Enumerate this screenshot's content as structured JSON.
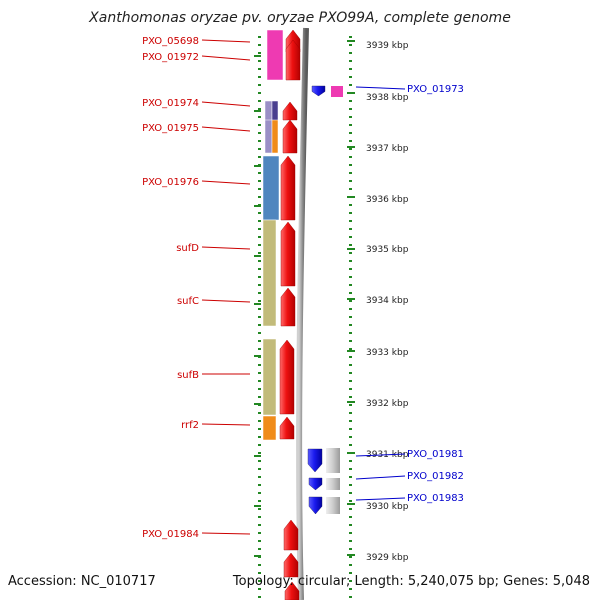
{
  "title": "Xanthomonas oryzae pv. oryzae PXO99A, complete genome",
  "footer": {
    "accession": "Accession: NC_010717",
    "summary": "Topology: circular; Length: 5,240,075 bp; Genes: 5,048"
  },
  "scale": {
    "unit": "kbp",
    "ticks": [
      3939,
      3938,
      3937,
      3936,
      3935,
      3934,
      3933,
      3932,
      3931,
      3930,
      3929
    ]
  },
  "colors": {
    "gene_arrow_forward": "#ee1111",
    "gene_arrow_reverse": "#1a1aee",
    "hypothetical": "#cccccc",
    "label_forward": "#cc0000",
    "label_reverse": "#0000cc",
    "tick_marks": "#228822",
    "backbone": "#8c8c8c"
  },
  "forward_strand_labels": [
    "PXO_05698",
    "PXO_01972",
    "PXO_01974",
    "PXO_01975",
    "PXO_01976",
    "sufD",
    "sufC",
    "sufB",
    "rrf2",
    "PXO_01984"
  ],
  "reverse_strand_labels": [
    "PXO_01973",
    "PXO_01981",
    "PXO_01982",
    "PXO_01983"
  ],
  "function_categories": [
    {
      "name": "pink",
      "color": "#ee3ab2"
    },
    {
      "name": "lavender",
      "color": "#9a8fc6"
    },
    {
      "name": "indigo",
      "color": "#4a3f8f"
    },
    {
      "name": "orange",
      "color": "#f08c1a"
    },
    {
      "name": "steelblue",
      "color": "#4f86bf"
    },
    {
      "name": "khaki",
      "color": "#c2bb7a"
    },
    {
      "name": "grey",
      "color": "#c8c8c8"
    }
  ]
}
